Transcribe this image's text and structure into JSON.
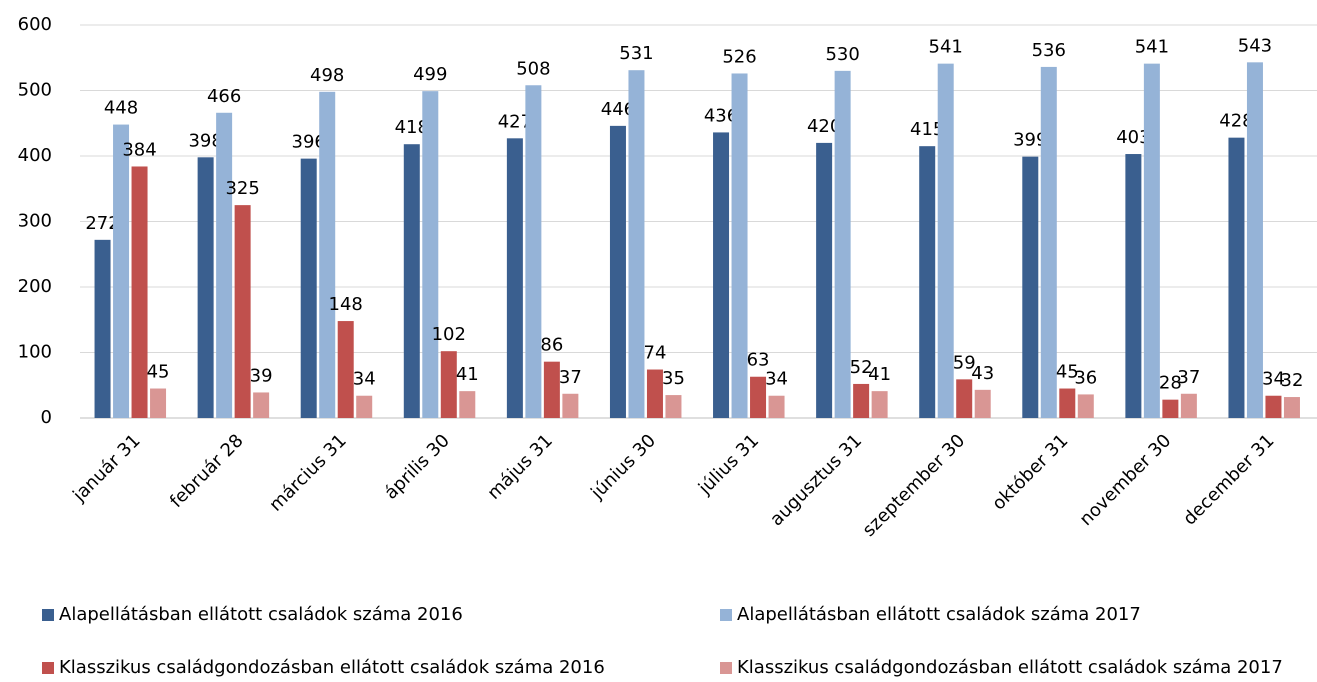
{
  "chart_data": {
    "type": "bar",
    "categories": [
      "január 31",
      "február 28",
      "március 31",
      "április 30",
      "május 31",
      "június 30",
      "július 31",
      "augusztus 31",
      "szeptember 30",
      "október 31",
      "november 30",
      "december 31"
    ],
    "series": [
      {
        "name": "Alapellátásban ellátott családok száma 2016",
        "color": "#3a5f8f",
        "values": [
          272,
          398,
          396,
          418,
          427,
          446,
          436,
          420,
          415,
          399,
          403,
          428
        ]
      },
      {
        "name": "Alapellátásban ellátott családok száma 2017",
        "color": "#95b3d7",
        "values": [
          448,
          466,
          498,
          499,
          508,
          531,
          526,
          530,
          541,
          536,
          541,
          543
        ]
      },
      {
        "name": "Klasszikus családgondozásban ellátott családok száma 2016",
        "color": "#c0504d",
        "values": [
          384,
          325,
          148,
          102,
          86,
          74,
          63,
          52,
          59,
          45,
          28,
          34
        ]
      },
      {
        "name": "Klasszikus családgondozásban ellátott családok száma 2017",
        "color": "#d99694",
        "values": [
          45,
          39,
          34,
          41,
          37,
          35,
          34,
          41,
          43,
          36,
          37,
          32
        ]
      }
    ],
    "ylim": [
      0,
      600
    ],
    "yticks": [
      0,
      100,
      200,
      300,
      400,
      500,
      600
    ],
    "grid": true,
    "legend": "bottom"
  }
}
